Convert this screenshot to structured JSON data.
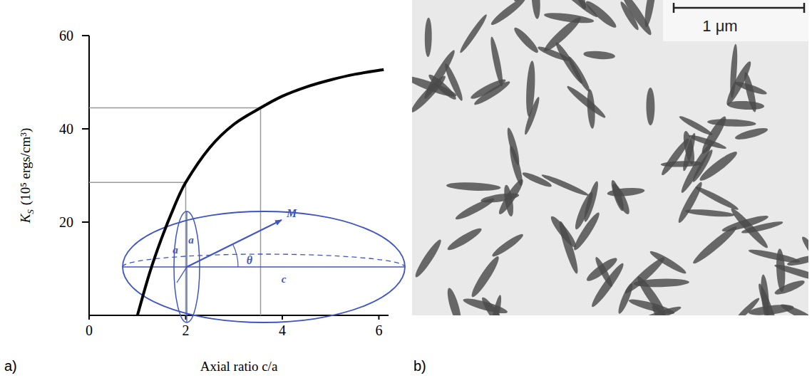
{
  "chart_data": {
    "type": "line",
    "x_label": "Axial ratio c/a",
    "y_label": {
      "symbol": "K",
      "subscript": "S",
      "unit": "(10⁵ ergs/cm³)"
    },
    "x": [
      1,
      1.25,
      1.5,
      1.75,
      2,
      2.5,
      3,
      3.55,
      4,
      4.5,
      5,
      5.5,
      6.1
    ],
    "values": [
      0,
      9,
      16.5,
      23,
      28.5,
      36,
      41,
      44.5,
      47,
      49,
      50.5,
      51.7,
      52.7
    ],
    "color": "#000000",
    "reference_lines": [
      {
        "x": 2,
        "y": 28.5
      },
      {
        "x": 3.55,
        "y": 44.5
      }
    ],
    "xlim": [
      0,
      6.2
    ],
    "ylim": [
      0,
      60
    ],
    "xticks": [
      0,
      2,
      4,
      6
    ],
    "yticks": [
      20,
      40,
      60
    ],
    "grid": false
  },
  "inset": {
    "axis_labels": [
      "a",
      "a",
      "c"
    ],
    "angle_label": "θ",
    "vector_label": "M"
  },
  "micrograph": {
    "scale_bar_label": "1 μm"
  },
  "panel_labels": [
    "a)",
    "b)"
  ]
}
